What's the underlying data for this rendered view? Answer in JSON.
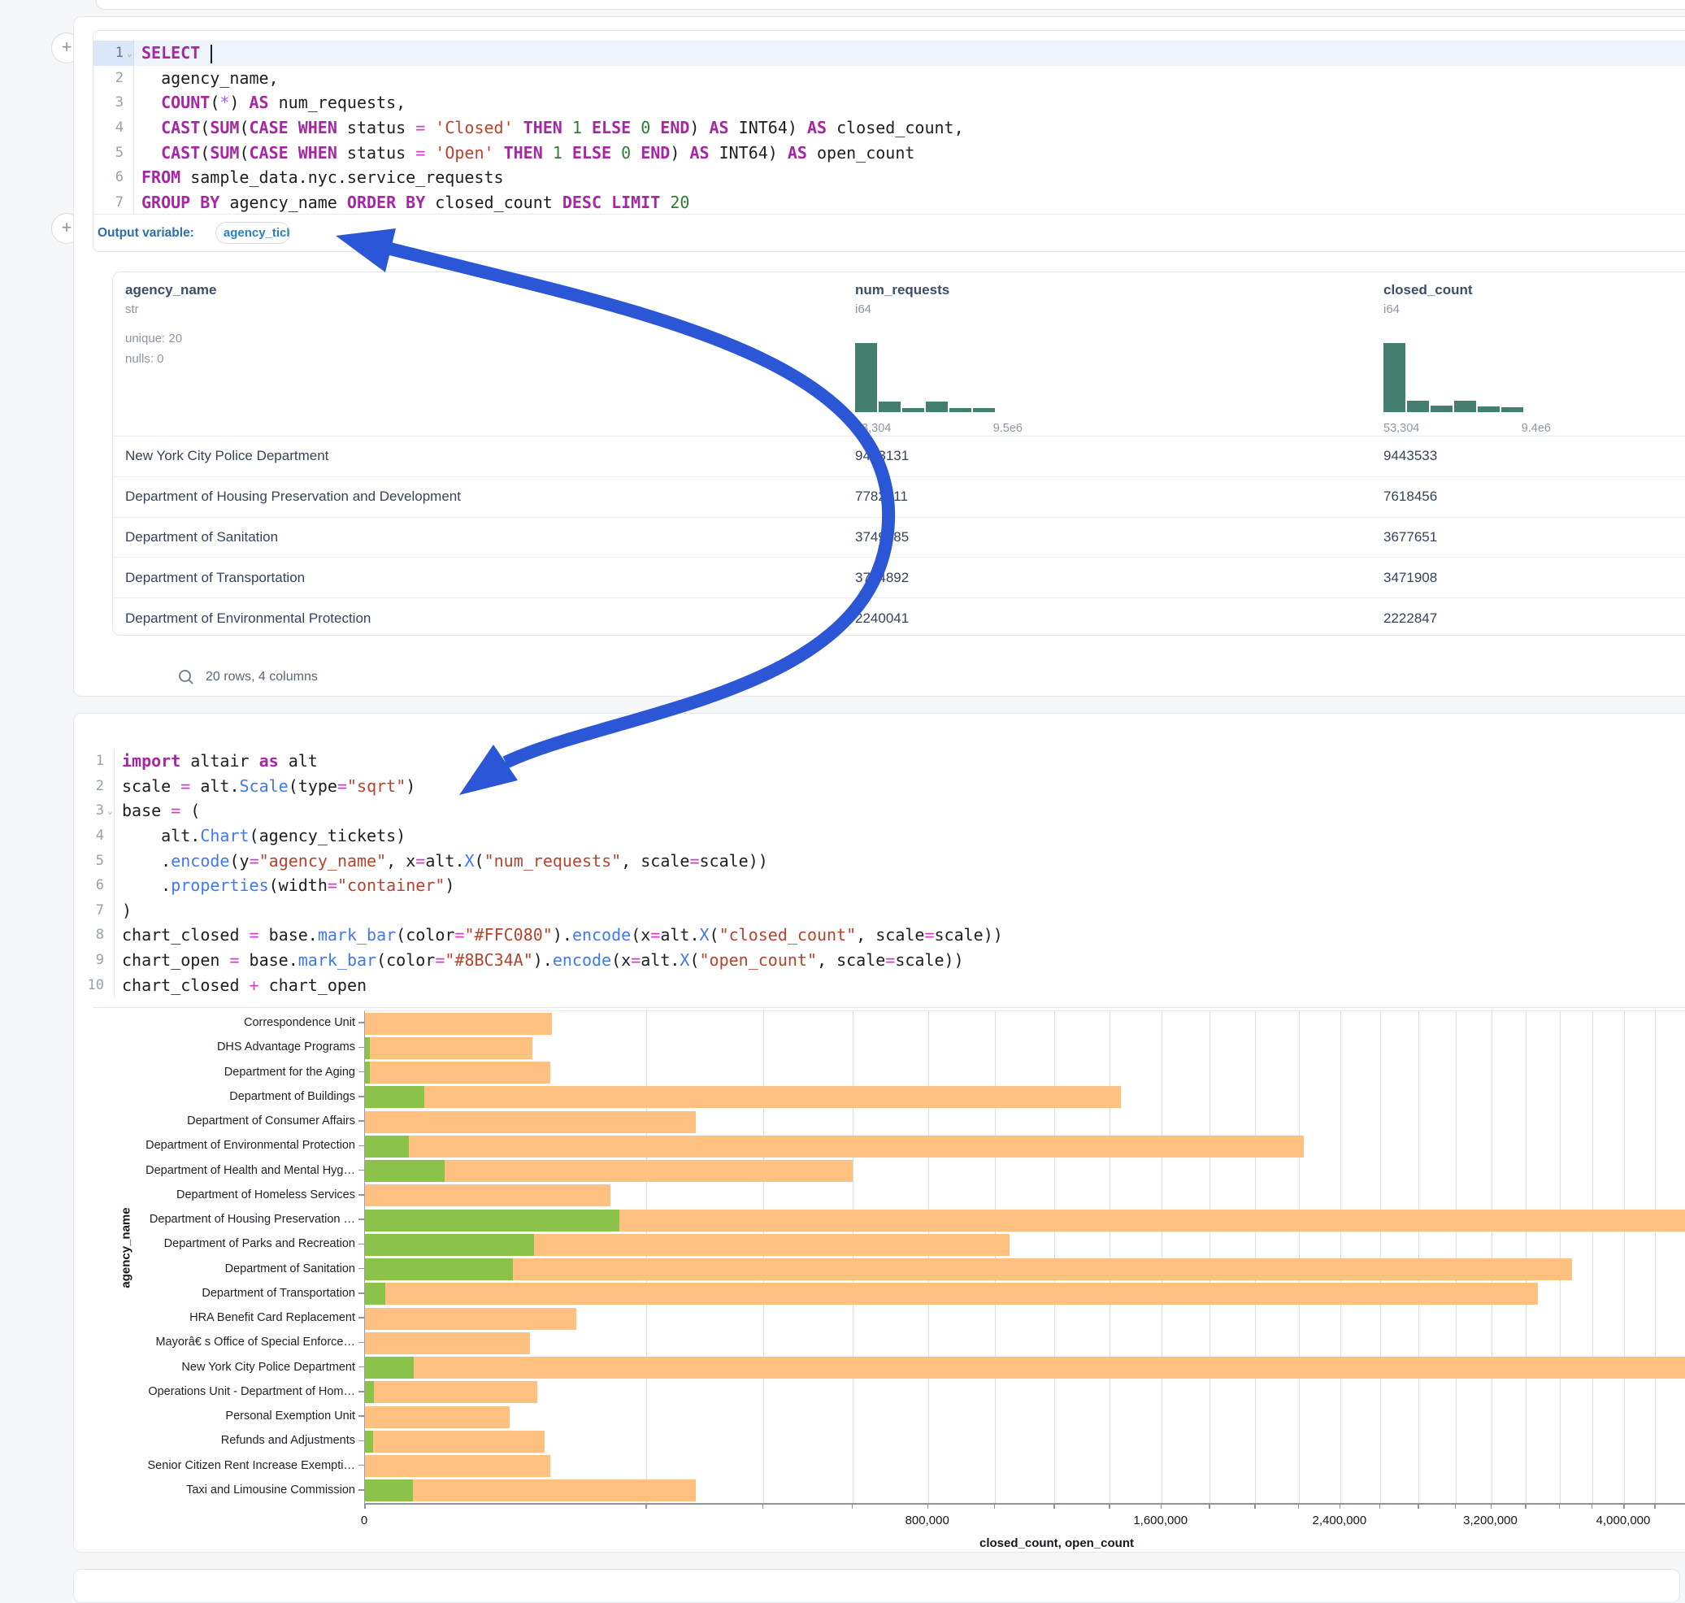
{
  "colors": {
    "arrow_blue": "#2b57d6",
    "keyword_purple": "#a626a4",
    "string_red": "#b5432e",
    "number_green": "#2e7d32",
    "method_blue": "#4078f2",
    "operator_pink": "#d63bc8",
    "hist_teal": "#447e6e",
    "closed_bar": "#FFC080",
    "open_bar": "#8BC34A",
    "output_label_blue": "#2d6ea8"
  },
  "sql_cell": {
    "lines": [
      {
        "n": "1",
        "fold": true,
        "hl": true,
        "cursor": true,
        "tokens": [
          [
            "SELECT",
            "k"
          ],
          [
            " ",
            "d"
          ]
        ]
      },
      {
        "n": "2",
        "tokens": [
          [
            "  agency_name,",
            "d"
          ]
        ]
      },
      {
        "n": "3",
        "tokens": [
          [
            "  ",
            "d"
          ],
          [
            "COUNT",
            "k"
          ],
          [
            "(",
            "d"
          ],
          [
            "*",
            "st"
          ],
          [
            ") ",
            "d"
          ],
          [
            "AS",
            "k"
          ],
          [
            " num_requests,",
            "d"
          ]
        ]
      },
      {
        "n": "4",
        "tokens": [
          [
            "  ",
            "d"
          ],
          [
            "CAST",
            "k"
          ],
          [
            "(",
            "d"
          ],
          [
            "SUM",
            "k"
          ],
          [
            "(",
            "d"
          ],
          [
            "CASE",
            "k"
          ],
          [
            " ",
            "d"
          ],
          [
            "WHEN",
            "k"
          ],
          [
            " status ",
            "d"
          ],
          [
            "=",
            "op"
          ],
          [
            " ",
            "d"
          ],
          [
            "'Closed'",
            "s"
          ],
          [
            " ",
            "d"
          ],
          [
            "THEN",
            "k"
          ],
          [
            " ",
            "d"
          ],
          [
            "1",
            "n"
          ],
          [
            " ",
            "d"
          ],
          [
            "ELSE",
            "k"
          ],
          [
            " ",
            "d"
          ],
          [
            "0",
            "n"
          ],
          [
            " ",
            "d"
          ],
          [
            "END",
            "k"
          ],
          [
            ") ",
            "d"
          ],
          [
            "AS",
            "k"
          ],
          [
            " INT64) ",
            "d"
          ],
          [
            "AS",
            "k"
          ],
          [
            " closed_count,",
            "d"
          ]
        ]
      },
      {
        "n": "5",
        "tokens": [
          [
            "  ",
            "d"
          ],
          [
            "CAST",
            "k"
          ],
          [
            "(",
            "d"
          ],
          [
            "SUM",
            "k"
          ],
          [
            "(",
            "d"
          ],
          [
            "CASE",
            "k"
          ],
          [
            " ",
            "d"
          ],
          [
            "WHEN",
            "k"
          ],
          [
            " status ",
            "d"
          ],
          [
            "=",
            "op"
          ],
          [
            " ",
            "d"
          ],
          [
            "'Open'",
            "s"
          ],
          [
            " ",
            "d"
          ],
          [
            "THEN",
            "k"
          ],
          [
            " ",
            "d"
          ],
          [
            "1",
            "n"
          ],
          [
            " ",
            "d"
          ],
          [
            "ELSE",
            "k"
          ],
          [
            " ",
            "d"
          ],
          [
            "0",
            "n"
          ],
          [
            " ",
            "d"
          ],
          [
            "END",
            "k"
          ],
          [
            ") ",
            "d"
          ],
          [
            "AS",
            "k"
          ],
          [
            " INT64) ",
            "d"
          ],
          [
            "AS",
            "k"
          ],
          [
            " open_count",
            "d"
          ]
        ]
      },
      {
        "n": "6",
        "tokens": [
          [
            "FROM",
            "k"
          ],
          [
            " sample_data.nyc.service_requests",
            "d"
          ]
        ]
      },
      {
        "n": "7",
        "tokens": [
          [
            "GROUP",
            "k"
          ],
          [
            " ",
            "d"
          ],
          [
            "BY",
            "k"
          ],
          [
            " agency_name ",
            "d"
          ],
          [
            "ORDER",
            "k"
          ],
          [
            " ",
            "d"
          ],
          [
            "BY",
            "k"
          ],
          [
            " closed_count ",
            "d"
          ],
          [
            "DESC",
            "k"
          ],
          [
            " ",
            "d"
          ],
          [
            "LIMIT",
            "k"
          ],
          [
            " ",
            "d"
          ],
          [
            "20",
            "n"
          ]
        ]
      }
    ],
    "output_label": "Output variable:",
    "output_variable": "agency_tickets"
  },
  "table": {
    "columns": [
      {
        "name": "agency_name",
        "type": "str",
        "stats": [
          "unique: 20",
          "nulls: 0"
        ]
      },
      {
        "name": "num_requests",
        "type": "i64",
        "hist": [
          1,
          0.155,
          0.06,
          0.155,
          0.06,
          0.06
        ],
        "hist_min": "53,304",
        "hist_max": "9.5e6"
      },
      {
        "name": "closed_count",
        "type": "i64",
        "hist": [
          1,
          0.17,
          0.09,
          0.17,
          0.08,
          0.07
        ],
        "hist_min": "53,304",
        "hist_max": "9.4e6"
      }
    ],
    "rows": [
      [
        "New York City Police Department",
        "9453131",
        "9443533"
      ],
      [
        "Department of Housing Preservation and Development",
        "7782211",
        "7618456"
      ],
      [
        "Department of Sanitation",
        "3749485",
        "3677651"
      ],
      [
        "Department of Transportation",
        "3774892",
        "3471908"
      ],
      [
        "Department of Environmental Protection",
        "2240041",
        "2222847"
      ]
    ],
    "footer": "20 rows, 4 columns"
  },
  "python_cell": {
    "lines": [
      {
        "n": "1",
        "tokens": [
          [
            "import",
            "k"
          ],
          [
            " altair ",
            "d"
          ],
          [
            "as",
            "k"
          ],
          [
            " alt",
            "d"
          ]
        ]
      },
      {
        "n": "2",
        "tokens": [
          [
            "scale ",
            "d"
          ],
          [
            "=",
            "op"
          ],
          [
            " alt.",
            "d"
          ],
          [
            "Scale",
            "m"
          ],
          [
            "(type",
            "d"
          ],
          [
            "=",
            "op"
          ],
          [
            "\"sqrt\"",
            "s"
          ],
          [
            ")",
            "d"
          ]
        ]
      },
      {
        "n": "3",
        "fold": true,
        "tokens": [
          [
            "base ",
            "d"
          ],
          [
            "=",
            "op"
          ],
          [
            " (",
            "d"
          ]
        ]
      },
      {
        "n": "4",
        "tokens": [
          [
            "    alt.",
            "d"
          ],
          [
            "Chart",
            "m"
          ],
          [
            "(agency_tickets)",
            "d"
          ]
        ]
      },
      {
        "n": "5",
        "tokens": [
          [
            "    .",
            "d"
          ],
          [
            "encode",
            "m"
          ],
          [
            "(y",
            "d"
          ],
          [
            "=",
            "op"
          ],
          [
            "\"agency_name\"",
            "s"
          ],
          [
            ", x",
            "d"
          ],
          [
            "=",
            "op"
          ],
          [
            "alt.",
            "d"
          ],
          [
            "X",
            "m"
          ],
          [
            "(",
            "d"
          ],
          [
            "\"num_requests\"",
            "s"
          ],
          [
            ", scale",
            "d"
          ],
          [
            "=",
            "op"
          ],
          [
            "scale))",
            "d"
          ]
        ]
      },
      {
        "n": "6",
        "tokens": [
          [
            "    .",
            "d"
          ],
          [
            "properties",
            "m"
          ],
          [
            "(width",
            "d"
          ],
          [
            "=",
            "op"
          ],
          [
            "\"container\"",
            "s"
          ],
          [
            ")",
            "d"
          ]
        ]
      },
      {
        "n": "7",
        "tokens": [
          [
            ")",
            "d"
          ]
        ]
      },
      {
        "n": "8",
        "tokens": [
          [
            "chart_closed ",
            "d"
          ],
          [
            "=",
            "op"
          ],
          [
            " base.",
            "d"
          ],
          [
            "mark_bar",
            "m"
          ],
          [
            "(color",
            "d"
          ],
          [
            "=",
            "op"
          ],
          [
            "\"#FFC080\"",
            "s"
          ],
          [
            ").",
            "d"
          ],
          [
            "encode",
            "m"
          ],
          [
            "(x",
            "d"
          ],
          [
            "=",
            "op"
          ],
          [
            "alt.",
            "d"
          ],
          [
            "X",
            "m"
          ],
          [
            "(",
            "d"
          ],
          [
            "\"closed_count\"",
            "s"
          ],
          [
            ", scale",
            "d"
          ],
          [
            "=",
            "op"
          ],
          [
            "scale))",
            "d"
          ]
        ]
      },
      {
        "n": "9",
        "tokens": [
          [
            "chart_open ",
            "d"
          ],
          [
            "=",
            "op"
          ],
          [
            " base.",
            "d"
          ],
          [
            "mark_bar",
            "m"
          ],
          [
            "(color",
            "d"
          ],
          [
            "=",
            "op"
          ],
          [
            "\"#8BC34A\"",
            "s"
          ],
          [
            ").",
            "d"
          ],
          [
            "encode",
            "m"
          ],
          [
            "(x",
            "d"
          ],
          [
            "=",
            "op"
          ],
          [
            "alt.",
            "d"
          ],
          [
            "X",
            "m"
          ],
          [
            "(",
            "d"
          ],
          [
            "\"open_count\"",
            "s"
          ],
          [
            ", scale",
            "d"
          ],
          [
            "=",
            "op"
          ],
          [
            "scale))",
            "d"
          ]
        ]
      },
      {
        "n": "10",
        "tokens": [
          [
            "chart_closed ",
            "d"
          ],
          [
            "+",
            "op"
          ],
          [
            " chart_open",
            "d"
          ]
        ]
      }
    ]
  },
  "chart_data": {
    "type": "bar",
    "orientation": "horizontal",
    "x_scale": "sqrt",
    "xlabel": "closed_count, open_count",
    "ylabel": "agency_name",
    "gridline_step": 200000,
    "x_ticks": [
      0,
      800000,
      1600000,
      2400000,
      3200000,
      4000000
    ],
    "x_tick_labels": [
      "0",
      "800,000",
      "1,600,000",
      "2,400,000",
      "3,200,000",
      "4,000,000"
    ],
    "categories": [
      "Correspondence Unit",
      "DHS Advantage Programs",
      "Department for the Aging",
      "Department of Buildings",
      "Department of Consumer Affairs",
      "Department of Environmental Protection",
      "Department of Health and Mental Hyg…",
      "Department of Homeless Services",
      "Department of Housing Preservation …",
      "Department of Parks and Recreation",
      "Department of Sanitation",
      "Department of Transportation",
      "HRA Benefit Card Replacement",
      "Mayorâ€ s Office of Special Enforce…",
      "New York City Police Department",
      "Operations Unit - Department of Hom…",
      "Personal Exemption Unit",
      "Refunds and Adjustments",
      "Senior Citizen Rent Increase Exempti…",
      "Taxi and Limousine Commission"
    ],
    "series": [
      {
        "name": "closed_count",
        "color": "#FFC080",
        "values": [
          88000,
          70500,
          86300,
          1442000,
          276000,
          2222847,
          600000,
          151600,
          7618456,
          1047000,
          3677651,
          3471908,
          113000,
          68800,
          9443533,
          75000,
          52500,
          81700,
          86800,
          276500
        ]
      },
      {
        "name": "open_count",
        "color": "#8BC34A",
        "values": [
          0,
          60,
          60,
          8900,
          0,
          4800,
          16000,
          0,
          163755,
          72000,
          55000,
          1000,
          0,
          0,
          5900,
          200,
          0,
          180,
          0,
          5800
        ]
      }
    ]
  }
}
